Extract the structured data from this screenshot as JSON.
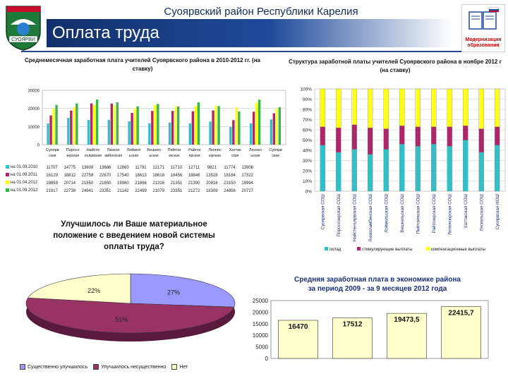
{
  "header": {
    "region_line": "Суоярвский район Республики Карелия",
    "title": "Оплата труда",
    "left_logo_text": "СУОЯРВИ",
    "right_logo_text": "Модернизация образования"
  },
  "colors": {
    "banner": "#1f4a9a",
    "cyan": "#2fc0c8",
    "magenta": "#b0246a",
    "yellow": "#ffff1a",
    "green": "#39b54a",
    "lav": "#9999ff",
    "wine": "#993366",
    "cream": "#ffffcc"
  },
  "chart_data": [
    {
      "type": "bar",
      "title": "Среднемесячная заработная плата учителей Суоярвского района в 2010-2012 гг. (на ставку)",
      "categories": [
        "Суоярвская СОШ",
        "Поросозерская СОШ",
        "Найстенъярвская СОШ",
        "Лахколамбинская СОШ",
        "Лоймольская СОШ",
        "Вешкельская СОШ",
        "Пийтсиекская СОШ",
        "Райгозерская СОШ",
        "Леппясюрская СОШ",
        "Хаттакская СОШ",
        "Ляскельская СОШ",
        "Суоярвская НОШ"
      ],
      "category_labels_top": [
        "Суоярв",
        "Поросо",
        "Найсте",
        "Лахкол",
        "Лоймол",
        "Вешкел",
        "Пийтси",
        "Райгоз",
        "Леппяс",
        "Хаттак",
        "Ляскел",
        "Суоярв"
      ],
      "category_labels_bottom": [
        "ская",
        "зерская",
        "нъярвская",
        "амбинская",
        "ьская",
        "ьская",
        "екская",
        "ерская",
        "юрская",
        "ская",
        "ьская",
        "ская"
      ],
      "series": [
        {
          "name": "на 01.09.2010",
          "values": [
            11707,
            14775,
            13608,
            13686,
            12860,
            11791,
            12171,
            11710,
            12711,
            9821,
            11774,
            13906
          ]
        },
        {
          "name": "на 01.09.2011",
          "values": [
            16129,
            18812,
            22758,
            22670,
            17540,
            18613,
            18618,
            18456,
            18846,
            13528,
            18184,
            17322
          ]
        },
        {
          "name": "на 01.04.2012",
          "values": [
            19859,
            20714,
            21850,
            21650,
            19960,
            21866,
            21316,
            21351,
            21390,
            20816,
            23150,
            19994
          ]
        },
        {
          "name": "на 01.09.2012",
          "values": [
            21917,
            22739,
            24941,
            23351,
            21142,
            22499,
            21079,
            23351,
            21272,
            18309,
            24856,
            20727
          ]
        }
      ],
      "table_rows": [
        {
          "label": "на 01.09.2010",
          "cells": [
            "11707",
            "14775",
            "13608",
            "13686",
            "12860",
            "11791",
            "12171",
            "11710",
            "12711",
            "9821",
            "11774",
            "13906"
          ]
        },
        {
          "label": "на 01.09.2011",
          "cells": [
            "16129",
            "18812",
            "22758",
            "22670",
            "17540",
            "18613",
            "18618",
            "18456",
            "18846",
            "13528",
            "18184",
            "17322"
          ]
        },
        {
          "label": "на 01.04.2012",
          "cells": [
            "19859",
            "20714",
            "21850",
            "21650",
            "19960",
            "21866",
            "21316",
            "21351",
            "21390",
            "20816",
            "23150",
            "19994"
          ]
        },
        {
          "label": "на 01.09.2012",
          "cells": [
            "21917",
            "22739",
            "24941",
            "23351",
            "21142",
            "22499",
            "21079",
            "23351",
            "21272",
            "18309",
            "24856",
            "20727"
          ]
        }
      ],
      "ylim": [
        0,
        30000
      ],
      "yticks": [
        "0",
        "10000",
        "20000",
        "30000"
      ]
    },
    {
      "type": "bar",
      "stacked": true,
      "title": "Структура заработной платы учителей Суоярвского района в ноябре 2012 г (на ставку)",
      "categories": [
        "Суоярвская СОШ",
        "Поросозерская СОШ",
        "Найстенъярвская СОШ",
        "Лахколамбинская СОШ",
        "Лоймольская СОШ",
        "Вешкельская СОШ",
        "Пийтсиекская СОШ",
        "Райгозерская СОШ",
        "Леппясюрская СОШ",
        "Хаттакская СОШ",
        "Ляскельская СОШ",
        "Суоярвская НОШ"
      ],
      "series": [
        {
          "name": "оклад",
          "values": [
            45,
            38,
            41,
            36,
            41,
            46,
            44,
            46,
            44,
            50,
            38,
            45
          ]
        },
        {
          "name": "стимулирующие выплаты",
          "values": [
            18,
            24,
            24,
            26,
            20,
            18,
            19,
            17,
            19,
            14,
            23,
            18
          ]
        },
        {
          "name": "компенсационные выплаты",
          "values": [
            37,
            38,
            35,
            38,
            39,
            36,
            37,
            37,
            37,
            36,
            39,
            37
          ]
        }
      ],
      "yticks": [
        "0%",
        "10%",
        "20%",
        "30%",
        "40%",
        "50%",
        "60%",
        "70%",
        "80%",
        "90%",
        "100%"
      ],
      "ylim": [
        0,
        100
      ]
    },
    {
      "type": "pie",
      "title": "Улучшилось ли Ваше материальное положение с введением новой системы оплаты труда?",
      "title_lines": [
        "Улучшилось ли Ваше материальное",
        "положение с введением новой системы",
        "оплаты труда?"
      ],
      "slices": [
        {
          "name": "Существенно улучшилось",
          "value": 27,
          "label": "27%"
        },
        {
          "name": "Улучшилось несущественно",
          "value": 51,
          "label": "51%"
        },
        {
          "name": "Нет",
          "value": 22,
          "label": "22%"
        }
      ]
    },
    {
      "type": "bar",
      "title": "Средняя заработная плата в экономике района за период 2009 - за 9 месяцев 2012 года",
      "title_lines": [
        "Средняя заработная плата в экономике района",
        "за период 2009 - за 9 месяцев 2012 года"
      ],
      "values": [
        16470,
        17512,
        19473.5,
        22415.7
      ],
      "value_labels": [
        "16470",
        "17512",
        "19473,5",
        "22415,7"
      ],
      "yticks": [
        "0",
        "5000",
        "10000",
        "15000",
        "20000",
        "25000"
      ],
      "ylim": [
        0,
        25000
      ]
    }
  ]
}
